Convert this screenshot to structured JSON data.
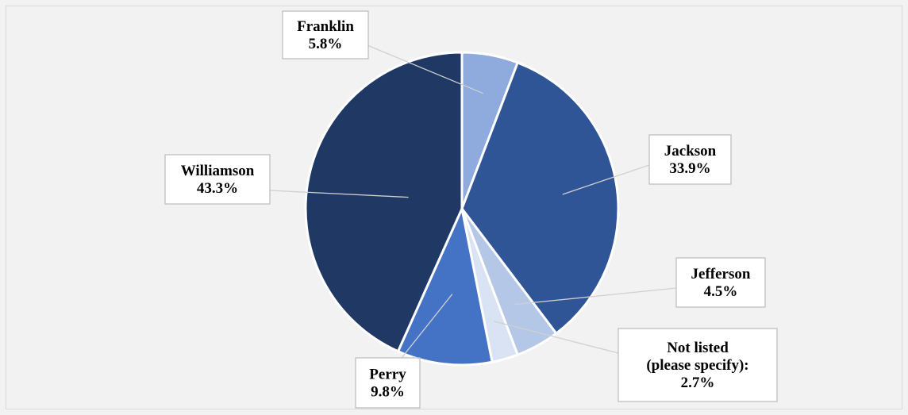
{
  "chart_data": {
    "type": "pie",
    "title": "",
    "slices": [
      {
        "label": "Franklin",
        "value": 5.8,
        "value_label": "5.8%",
        "color": "#8faadc"
      },
      {
        "label": "Jackson",
        "value": 33.9,
        "value_label": "33.9%",
        "color": "#2f5597"
      },
      {
        "label": "Jefferson",
        "value": 4.5,
        "value_label": "4.5%",
        "color": "#b4c7e7"
      },
      {
        "label": "Not listed (please specify):",
        "value": 2.7,
        "value_label": "2.7%",
        "color": "#dae3f3"
      },
      {
        "label": "Perry",
        "value": 9.8,
        "value_label": "9.8%",
        "color": "#4472c4"
      },
      {
        "label": "Williamson",
        "value": 43.3,
        "value_label": "43.3%",
        "color": "#203864"
      }
    ],
    "start_angle": "12 o'clock, clockwise",
    "legend": "none"
  }
}
